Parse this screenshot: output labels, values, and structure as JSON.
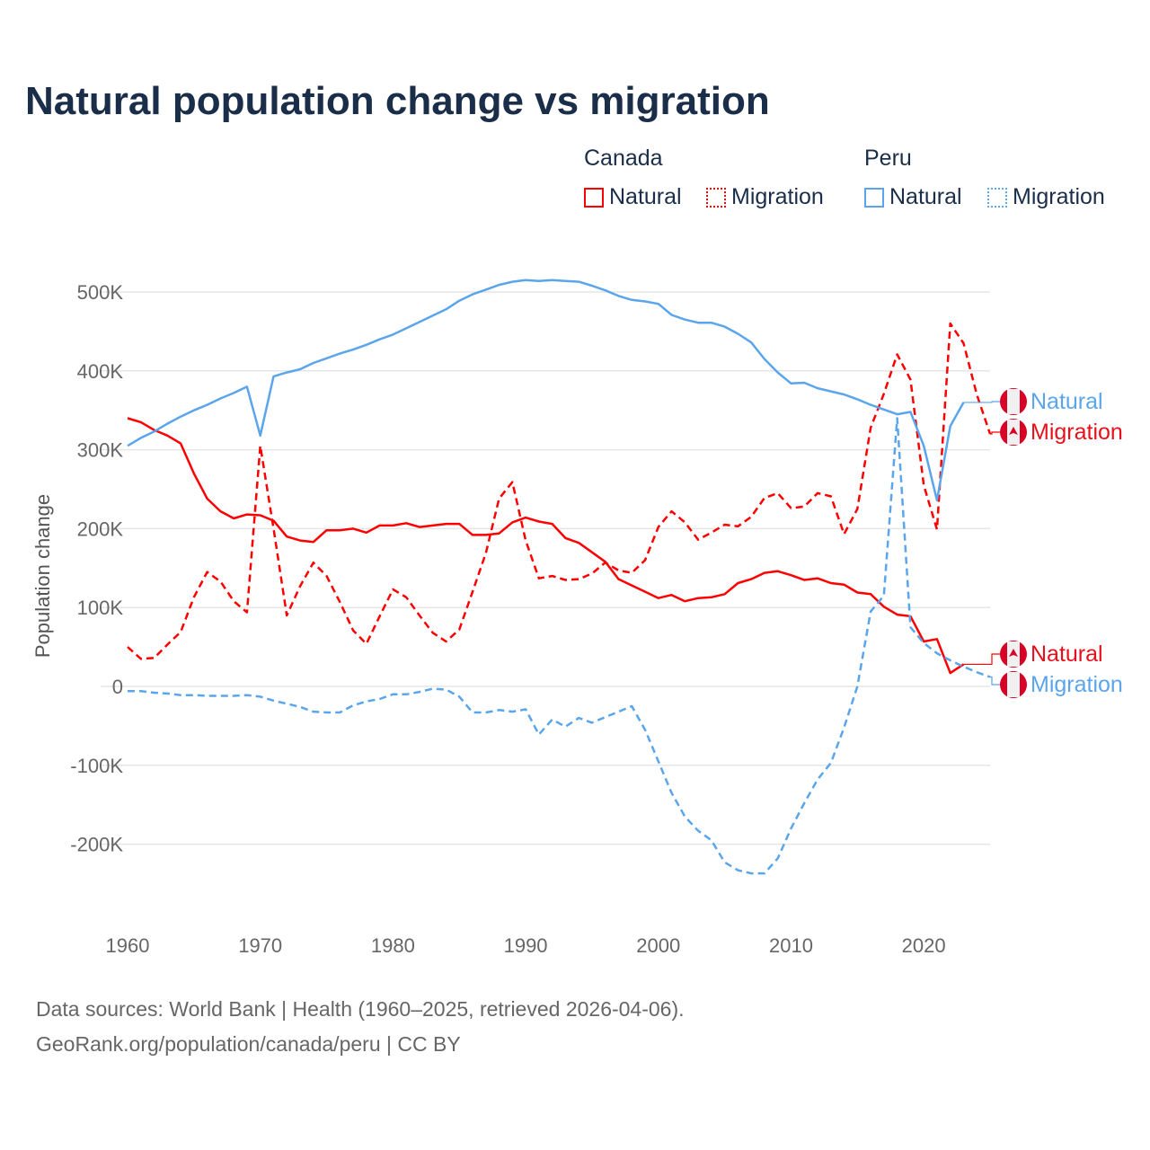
{
  "title": "Natural population change vs migration",
  "legend": {
    "groups": [
      {
        "name": "Canada",
        "items": [
          {
            "label": "Natural",
            "style": "solid"
          },
          {
            "label": "Migration",
            "style": "dotted"
          }
        ],
        "color": "#ff0000"
      },
      {
        "name": "Peru",
        "items": [
          {
            "label": "Natural",
            "style": "solid"
          },
          {
            "label": "Migration",
            "style": "dotted"
          }
        ],
        "color": "#5aa5ec"
      }
    ]
  },
  "sources": [
    "Data sources: World Bank | Health (1960–2025, retrieved 2026-04-06).",
    "GeoRank.org/population/canada/peru | CC BY"
  ],
  "chart_data": {
    "type": "line",
    "title": "Natural population change vs migration",
    "xlabel": "",
    "ylabel": "Population change",
    "xlim": [
      1960,
      2025
    ],
    "ylim": [
      -270000,
      560000
    ],
    "x_ticks": [
      1960,
      1970,
      1980,
      1990,
      2000,
      2010,
      2020
    ],
    "x_tick_labels": [
      "1960",
      "1970",
      "1980",
      "1990",
      "2000",
      "2010",
      "2020"
    ],
    "y_ticks": [
      -200000,
      -100000,
      0,
      100000,
      200000,
      300000,
      400000,
      500000
    ],
    "y_tick_labels": [
      "-200K",
      "-100K",
      "0",
      "100K",
      "200K",
      "300K",
      "400K",
      "500K"
    ],
    "grid": true,
    "legend_position": "top-right",
    "start_year": 1960,
    "series": [
      {
        "name": "Canada Natural",
        "end_label": "Natural",
        "country": "Canada",
        "color": "#ff0000",
        "dash": false,
        "values_k": [
          340,
          335,
          325,
          318,
          308,
          270,
          238,
          222,
          213,
          218,
          217,
          210,
          190,
          185,
          183,
          198,
          198,
          200,
          195,
          204,
          204,
          207,
          202,
          204,
          206,
          206,
          192,
          192,
          194,
          208,
          214,
          209,
          206,
          188,
          182,
          170,
          158,
          136,
          128,
          120,
          112,
          116,
          108,
          112,
          113,
          117,
          131,
          136,
          144,
          146,
          141,
          135,
          137,
          131,
          129,
          119,
          117,
          101,
          91,
          89,
          57,
          60,
          17,
          28
        ]
      },
      {
        "name": "Canada Migration",
        "end_label": "Migration",
        "country": "Canada",
        "color": "#ff0000",
        "dash": true,
        "values_k": [
          50,
          35,
          36,
          53,
          69,
          113,
          145,
          133,
          108,
          94,
          305,
          200,
          90,
          127,
          157,
          140,
          107,
          71,
          54,
          89,
          123,
          113,
          90,
          68,
          57,
          72,
          120,
          169,
          238,
          259,
          185,
          137,
          140,
          135,
          136,
          143,
          157,
          147,
          144,
          160,
          202,
          222,
          208,
          186,
          195,
          205,
          203,
          215,
          239,
          245,
          226,
          228,
          245,
          241,
          193,
          225,
          328,
          371,
          421,
          389,
          255,
          199,
          460,
          435,
          370,
          320
        ]
      },
      {
        "name": "Peru Natural",
        "end_label": "Natural",
        "country": "Peru",
        "color": "#5aa5ec",
        "dash": false,
        "values_k": [
          305,
          315,
          323,
          333,
          342,
          350,
          357,
          365,
          372,
          380,
          318,
          393,
          398,
          402,
          410,
          416,
          422,
          427,
          433,
          440,
          446,
          454,
          462,
          470,
          478,
          489,
          497,
          503,
          509,
          513,
          515,
          514,
          515,
          514,
          513,
          508,
          502,
          495,
          490,
          488,
          485,
          471,
          465,
          461,
          461,
          456,
          447,
          436,
          415,
          398,
          384,
          385,
          378,
          374,
          370,
          364,
          357,
          351,
          345,
          348,
          305,
          236,
          330,
          360
        ]
      },
      {
        "name": "Peru Migration",
        "end_label": "Migration",
        "country": "Peru",
        "color": "#5aa5ec",
        "dash": true,
        "values_k": [
          -6,
          -6,
          -8,
          -9,
          -11,
          -11,
          -12,
          -12,
          -12,
          -11,
          -13,
          -18,
          -22,
          -26,
          -32,
          -33,
          -33,
          -24,
          -19,
          -16,
          -10,
          -10,
          -7,
          -3,
          -4,
          -13,
          -33,
          -33,
          -30,
          -32,
          -29,
          -61,
          -42,
          -51,
          -40,
          -46,
          -39,
          -32,
          -25,
          -55,
          -95,
          -135,
          -165,
          -183,
          -195,
          -223,
          -233,
          -237,
          -237,
          -218,
          -180,
          -148,
          -118,
          -97,
          -52,
          0,
          95,
          115,
          340,
          75,
          55,
          42,
          33,
          25,
          18,
          12
        ]
      }
    ]
  }
}
